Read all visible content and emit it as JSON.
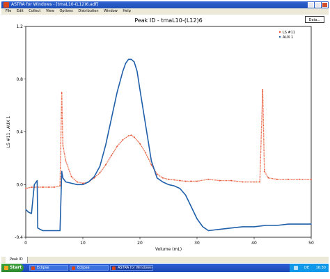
{
  "window": {
    "title": "ASTRA for Windows - [tmaL10-(L12)6.adf]",
    "buttons": [
      "minimize",
      "maximize",
      "close"
    ]
  },
  "menu": [
    "File",
    "Edit",
    "Collect",
    "View",
    "Options",
    "Distribution",
    "Window",
    "Help"
  ],
  "toolbar": {
    "data_button": "Data..."
  },
  "status_tab": "Peak ID",
  "taskbar": {
    "start_label": "Start",
    "tasks": [
      "Eclipse",
      "Eclipse",
      "ASTRA for Windows-"
    ],
    "clock": "16:30",
    "tray_text": "DE"
  },
  "chart_data": {
    "type": "line",
    "title": "Peak ID - tmaL10-(L12)6",
    "xlabel": "Volume (mL)",
    "ylabel": "LS #11 , AUX 1",
    "xlim": [
      0,
      50
    ],
    "ylim": [
      -0.4,
      1.2
    ],
    "x_ticks": [
      0,
      10,
      20,
      30,
      40,
      50
    ],
    "y_ticks": [
      -0.4,
      0.0,
      0.4,
      0.8,
      1.2
    ],
    "y_tick_labels": [
      "-0.4",
      "0.0",
      "0.4",
      "0.8",
      "1.2"
    ],
    "legend_position": "top-right",
    "grid": false,
    "series": [
      {
        "name": "LS #11",
        "color": "#e8502b",
        "style": "dots",
        "x": [
          0,
          1,
          2,
          3,
          4,
          5,
          6,
          6.3,
          6.5,
          7,
          8,
          9,
          10,
          11,
          12,
          13,
          14,
          15,
          16,
          17,
          18,
          18.5,
          19,
          20,
          21,
          22,
          23,
          24,
          25,
          26,
          27,
          28,
          29,
          30,
          32,
          34,
          36,
          38,
          40,
          41,
          41.5,
          41.8,
          42.5,
          44,
          46,
          48,
          50
        ],
        "y": [
          -0.03,
          -0.02,
          -0.02,
          -0.02,
          -0.02,
          -0.02,
          -0.01,
          0.7,
          0.3,
          0.18,
          0.06,
          0.02,
          0.01,
          0.02,
          0.05,
          0.09,
          0.15,
          0.22,
          0.29,
          0.34,
          0.37,
          0.375,
          0.36,
          0.31,
          0.24,
          0.15,
          0.08,
          0.05,
          0.04,
          0.035,
          0.03,
          0.025,
          0.025,
          0.025,
          0.04,
          0.03,
          0.03,
          0.02,
          0.02,
          0.02,
          0.72,
          0.1,
          0.05,
          0.04,
          0.04,
          0.04,
          0.04
        ]
      },
      {
        "name": "AUX 1",
        "color": "#1f5faa",
        "style": "line",
        "x": [
          0,
          0.5,
          1,
          1.5,
          2,
          2.1,
          2.5,
          3,
          4,
          5,
          6,
          6.3,
          6.5,
          7,
          8,
          9,
          10,
          11,
          12,
          13,
          14,
          15,
          16,
          17,
          17.5,
          18,
          18.5,
          19,
          19.5,
          20,
          21,
          22,
          23,
          24,
          25,
          26,
          27,
          28,
          29,
          30,
          31,
          32,
          34,
          36,
          38,
          40,
          42,
          44,
          46,
          48,
          50
        ],
        "y": [
          -0.19,
          -0.21,
          -0.22,
          0.0,
          0.03,
          -0.33,
          -0.34,
          -0.35,
          -0.35,
          -0.35,
          -0.35,
          0.1,
          0.05,
          0.02,
          0.01,
          0.0,
          0.0,
          0.02,
          0.06,
          0.14,
          0.3,
          0.5,
          0.7,
          0.86,
          0.92,
          0.95,
          0.95,
          0.93,
          0.86,
          0.72,
          0.45,
          0.18,
          0.05,
          0.02,
          0.0,
          -0.01,
          -0.03,
          -0.08,
          -0.17,
          -0.26,
          -0.32,
          -0.35,
          -0.34,
          -0.33,
          -0.32,
          -0.32,
          -0.31,
          -0.31,
          -0.3,
          -0.3,
          -0.3
        ]
      }
    ]
  }
}
